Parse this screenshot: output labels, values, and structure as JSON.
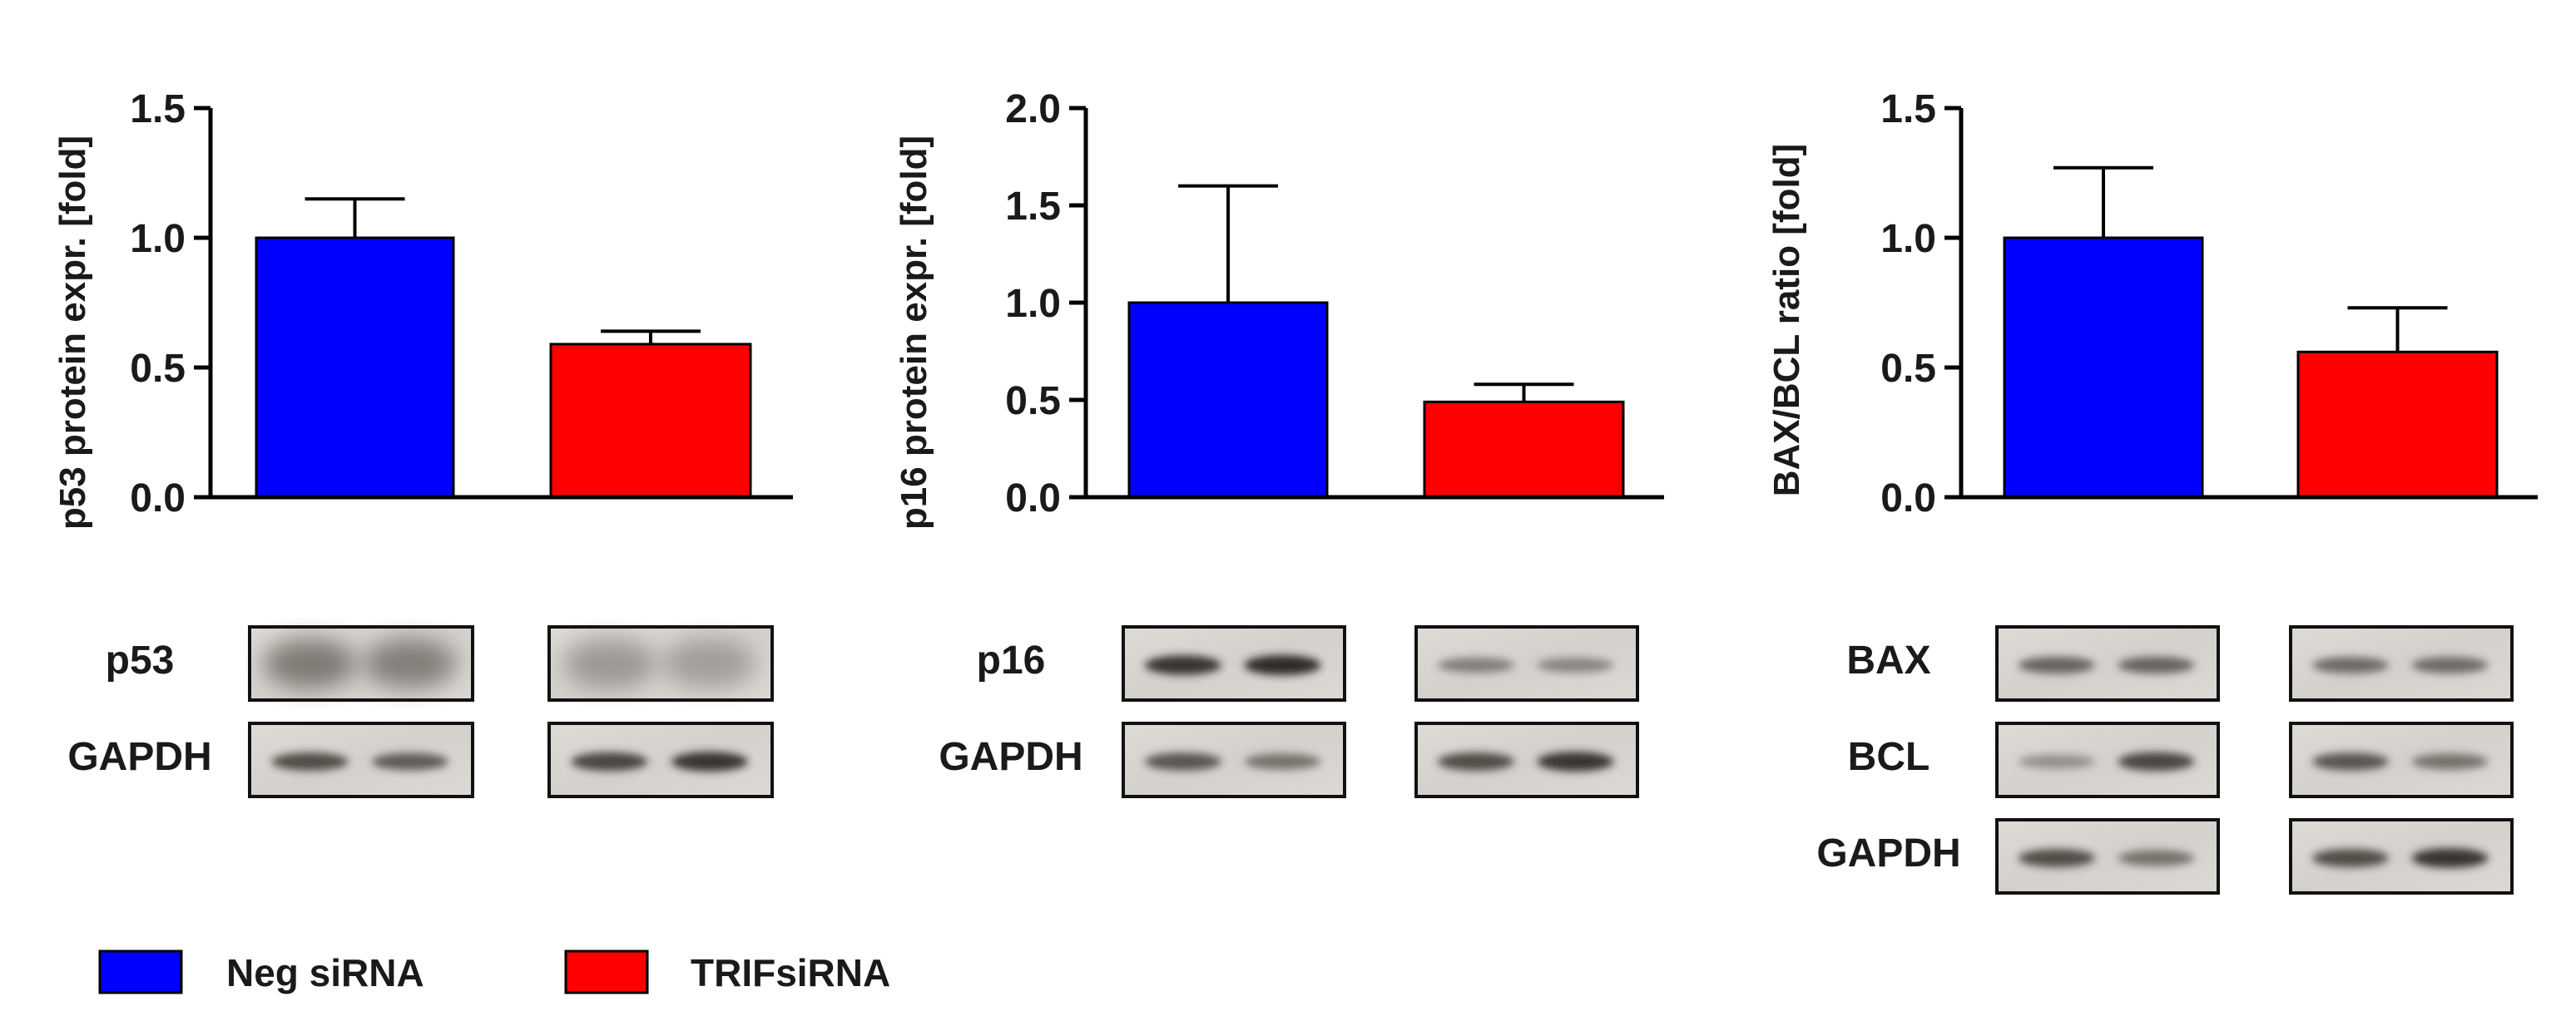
{
  "legend": [
    {
      "label": "Neg siRNA",
      "color": "#0000ff"
    },
    {
      "label": "TRIFsiRNA",
      "color": "#ff0000"
    }
  ],
  "chart_data": [
    {
      "type": "bar",
      "categories": [
        "Neg siRNA",
        "TRIFsiRNA"
      ],
      "values": [
        1.0,
        0.59
      ],
      "errors": [
        0.15,
        0.05
      ],
      "colors": [
        "#0000ff",
        "#ff0000"
      ],
      "ylabel": "p53 protein expr. [fold]",
      "ylim": [
        0,
        1.5
      ],
      "yticks": [
        "0.0",
        "0.5",
        "1.0",
        "1.5"
      ],
      "grid": false,
      "blot_labels": [
        "p53",
        "GAPDH"
      ]
    },
    {
      "type": "bar",
      "categories": [
        "Neg siRNA",
        "TRIFsiRNA"
      ],
      "values": [
        1.0,
        0.49
      ],
      "errors": [
        0.6,
        0.09
      ],
      "colors": [
        "#0000ff",
        "#ff0000"
      ],
      "ylabel": "p16 protein expr. [fold]",
      "ylim": [
        0,
        2.0
      ],
      "yticks": [
        "0.0",
        "0.5",
        "1.0",
        "1.5",
        "2.0"
      ],
      "grid": false,
      "blot_labels": [
        "p16",
        "GAPDH"
      ]
    },
    {
      "type": "bar",
      "categories": [
        "Neg siRNA",
        "TRIFsiRNA"
      ],
      "values": [
        1.0,
        0.56
      ],
      "errors": [
        0.27,
        0.17
      ],
      "colors": [
        "#0000ff",
        "#ff0000"
      ],
      "ylabel": "BAX/BCL ratio [fold]",
      "ylim": [
        0,
        1.5
      ],
      "yticks": [
        "0.0",
        "0.5",
        "1.0",
        "1.5"
      ],
      "grid": false,
      "blot_labels": [
        "BAX",
        "BCL",
        "GAPDH"
      ]
    }
  ]
}
